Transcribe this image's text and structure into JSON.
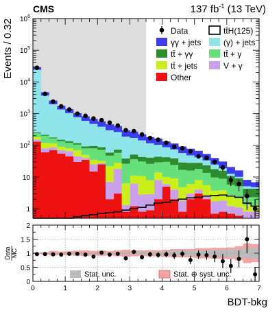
{
  "header": {
    "experiment": "CMS",
    "lumi_value": "137 fb",
    "lumi_exp": "-1",
    "lumi_energy": " (13 TeV)"
  },
  "colors": {
    "gg_jets": "#3b3bf0",
    "gamma_jets": "#8ee6ea",
    "tt_gg": "#2e8b2e",
    "tt_g": "#66e07a",
    "tt_jets": "#ccee1a",
    "v_g": "#c9a0ec",
    "other": "#ee1111",
    "tth_line": "#000000",
    "blind": "#dddddd",
    "stat_band": "#bbbbbb",
    "syst_band": "#f4a3a3"
  },
  "chart_data": [
    {
      "type": "bar",
      "stacked": true,
      "x_edges": [
        0,
        0.25,
        0.5,
        0.75,
        1.0,
        1.25,
        1.5,
        1.75,
        2.0,
        2.25,
        2.5,
        2.75,
        3.0,
        3.25,
        3.5,
        3.75,
        4.0,
        4.25,
        4.5,
        4.75,
        5.0,
        5.25,
        5.5,
        5.75,
        6.0,
        6.25,
        6.5,
        6.75,
        7.0
      ],
      "xlim": [
        0,
        7
      ],
      "ylim": [
        0.5,
        1000000
      ],
      "log_y": true,
      "ylabel": "Events / 0.32",
      "y_ticks": [
        {
          "value": 1,
          "base": "1",
          "exp": ""
        },
        {
          "value": 10,
          "base": "10",
          "exp": ""
        },
        {
          "value": 100,
          "base": "10",
          "exp": "2"
        },
        {
          "value": 1000,
          "base": "10",
          "exp": "3"
        },
        {
          "value": 10000,
          "base": "10",
          "exp": "4"
        },
        {
          "value": 100000,
          "base": "10",
          "exp": "5"
        },
        {
          "value": 1000000,
          "base": "10",
          "exp": "6"
        }
      ],
      "blinded_region": [
        0,
        3.5
      ],
      "series": [
        {
          "name": "Other",
          "color_key": "other",
          "values": [
            130,
            60,
            70,
            55,
            45,
            30,
            35,
            15,
            25,
            2,
            3,
            0.8,
            1.2,
            0.8,
            0.9,
            2,
            5,
            2,
            0.8,
            2,
            3,
            2,
            0.7,
            0.8,
            0.7,
            0.6,
            0.5,
            0.5
          ]
        },
        {
          "name": "V + γ",
          "color_key": "v_g",
          "values": [
            20,
            20,
            15,
            15,
            20,
            15,
            5,
            10,
            2,
            5,
            15,
            0.5,
            5,
            2,
            2,
            6,
            1,
            2,
            1,
            1,
            1,
            0.5,
            1,
            1,
            0.5,
            0.5,
            0.3,
            0.3
          ]
        },
        {
          "name": "tt̄ + jets",
          "color_key": "tt_jets",
          "values": [
            30,
            40,
            30,
            20,
            15,
            25,
            10,
            10,
            5,
            15,
            10,
            5,
            5,
            8,
            5,
            6,
            4,
            5,
            3,
            3,
            4,
            3,
            2,
            2,
            1.5,
            1,
            0.5,
            0.5
          ]
        },
        {
          "name": "tt̄ + γ",
          "color_key": "tt_g",
          "values": [
            60,
            80,
            50,
            45,
            40,
            35,
            30,
            45,
            40,
            25,
            30,
            20,
            25,
            20,
            18,
            15,
            20,
            15,
            12,
            10,
            10,
            8,
            6,
            5,
            3,
            3,
            1,
            1
          ]
        },
        {
          "name": "tt̄ + γγ",
          "color_key": "tt_gg",
          "values": [
            15,
            15,
            12,
            15,
            15,
            12,
            12,
            15,
            15,
            12,
            15,
            12,
            15,
            12,
            15,
            15,
            12,
            15,
            12,
            12,
            10,
            10,
            8,
            7,
            5,
            4,
            2,
            2
          ]
        },
        {
          "name": "(γ) + jets",
          "color_key": "gamma_jets",
          "values": [
            24000,
            3500,
            1800,
            1200,
            900,
            650,
            500,
            380,
            300,
            240,
            190,
            150,
            120,
            100,
            75,
            60,
            45,
            35,
            28,
            20,
            14,
            10,
            7,
            3,
            2,
            1,
            0.8,
            0.5
          ]
        },
        {
          "name": "γγ + jets",
          "color_key": "gg_jets",
          "values": [
            5000,
            1000,
            600,
            400,
            350,
            260,
            230,
            200,
            180,
            160,
            140,
            110,
            100,
            80,
            65,
            60,
            45,
            40,
            35,
            30,
            25,
            20,
            15,
            12,
            8,
            6,
            3,
            2
          ]
        }
      ],
      "signal": {
        "name": "tt̄H(125)",
        "color_key": "tth_line",
        "values": [
          0.25,
          0.3,
          0.35,
          0.45,
          0.5,
          0.55,
          0.6,
          0.65,
          0.7,
          0.75,
          0.8,
          0.9,
          1.0,
          1.1,
          1.3,
          1.5,
          1.6,
          1.8,
          2.0,
          2.2,
          2.3,
          2.5,
          2.6,
          2.7,
          2.5,
          2.3,
          1.5,
          1.2
        ]
      },
      "data": {
        "name": "Data",
        "x": [
          0.125,
          0.375,
          0.625,
          0.875,
          1.125,
          1.375,
          1.625,
          1.875,
          2.125,
          2.375,
          2.625,
          2.875,
          3.125,
          3.375,
          3.625,
          3.875,
          4.125,
          4.375,
          4.625,
          4.875,
          5.125,
          5.375,
          5.625,
          5.875,
          6.125,
          6.375,
          6.625,
          6.875
        ],
        "y": [
          28000,
          4200,
          2400,
          1700,
          1350,
          1000,
          850,
          700,
          620,
          520,
          420,
          300,
          280,
          220,
          170,
          150,
          120,
          90,
          80,
          65,
          45,
          40,
          30,
          20,
          8,
          6,
          2.5,
          1
        ]
      },
      "legend": {
        "placement": "top-right",
        "entries": [
          {
            "label": "Data",
            "kind": "marker",
            "color_key": "tth_line"
          },
          {
            "label": "tt̄H(125)",
            "kind": "line",
            "color_key": "tth_line"
          },
          {
            "label": "γγ + jets",
            "kind": "box",
            "color_key": "gg_jets"
          },
          {
            "label": "(γ) + jets",
            "kind": "box",
            "color_key": "gamma_jets"
          },
          {
            "label": "tt̄ + γγ",
            "kind": "box",
            "color_key": "tt_gg"
          },
          {
            "label": "tt̄ + γ",
            "kind": "box",
            "color_key": "tt_g"
          },
          {
            "label": "tt̄ + jets",
            "kind": "box",
            "color_key": "tt_jets"
          },
          {
            "label": "V + γ",
            "kind": "box",
            "color_key": "v_g"
          },
          {
            "label": "Other",
            "kind": "box",
            "color_key": "other"
          }
        ]
      }
    },
    {
      "type": "scatter",
      "ylabel_top": "Data",
      "ylabel_bottom": "MC",
      "xlabel": "BDT-bkg",
      "xlim": [
        0,
        7
      ],
      "ylim": [
        0,
        2
      ],
      "x_ticks": [
        "0",
        "1",
        "2",
        "3",
        "4",
        "5",
        "6",
        "7"
      ],
      "y_ticks": [
        "0",
        "0.5",
        "1",
        "1.5",
        "2"
      ],
      "x": [
        0.125,
        0.375,
        0.625,
        0.875,
        1.125,
        1.375,
        1.625,
        1.875,
        2.125,
        2.375,
        2.625,
        2.875,
        3.125,
        3.375,
        3.625,
        3.875,
        4.125,
        4.375,
        4.625,
        4.875,
        5.125,
        5.375,
        5.625,
        5.875,
        6.125,
        6.375,
        6.625,
        6.875
      ],
      "ratio": [
        0.97,
        0.97,
        0.96,
        0.95,
        0.98,
        0.98,
        0.95,
        0.88,
        1.02,
        0.95,
        0.98,
        0.82,
        1.05,
        0.86,
        0.96,
        0.94,
        0.96,
        0.92,
        0.98,
        0.76,
        0.95,
        0.93,
        0.88,
        0.72,
        0.55,
        0.8,
        1.5,
        0.25
      ],
      "ratio_err": [
        0.01,
        0.02,
        0.03,
        0.03,
        0.03,
        0.04,
        0.05,
        0.05,
        0.06,
        0.06,
        0.07,
        0.08,
        0.08,
        0.08,
        0.09,
        0.1,
        0.1,
        0.12,
        0.12,
        0.15,
        0.15,
        0.16,
        0.2,
        0.25,
        0.25,
        0.3,
        0.5,
        0.25
      ],
      "stat_unc": [
        0.01,
        0.01,
        0.01,
        0.01,
        0.02,
        0.02,
        0.02,
        0.02,
        0.03,
        0.03,
        0.03,
        0.04,
        0.04,
        0.05,
        0.05,
        0.06,
        0.07,
        0.08,
        0.08,
        0.09,
        0.1,
        0.1,
        0.12,
        0.12,
        0.14,
        0.15,
        0.18,
        0.2
      ],
      "syst_unc": [
        0.03,
        0.04,
        0.08,
        0.06,
        0.07,
        0.09,
        0.1,
        0.08,
        0.09,
        0.07,
        0.1,
        0.12,
        0.1,
        0.09,
        0.1,
        0.09,
        0.1,
        0.12,
        0.12,
        0.12,
        0.15,
        0.15,
        0.15,
        0.15,
        0.15,
        0.2,
        0.3,
        0.25
      ],
      "legend": {
        "placement": "bottom",
        "entries": [
          {
            "label": "Stat. unc.",
            "color_key": "stat_band"
          },
          {
            "label": "Stat. ⊕ syst. unc.",
            "color_key": "syst_band"
          }
        ]
      }
    }
  ]
}
